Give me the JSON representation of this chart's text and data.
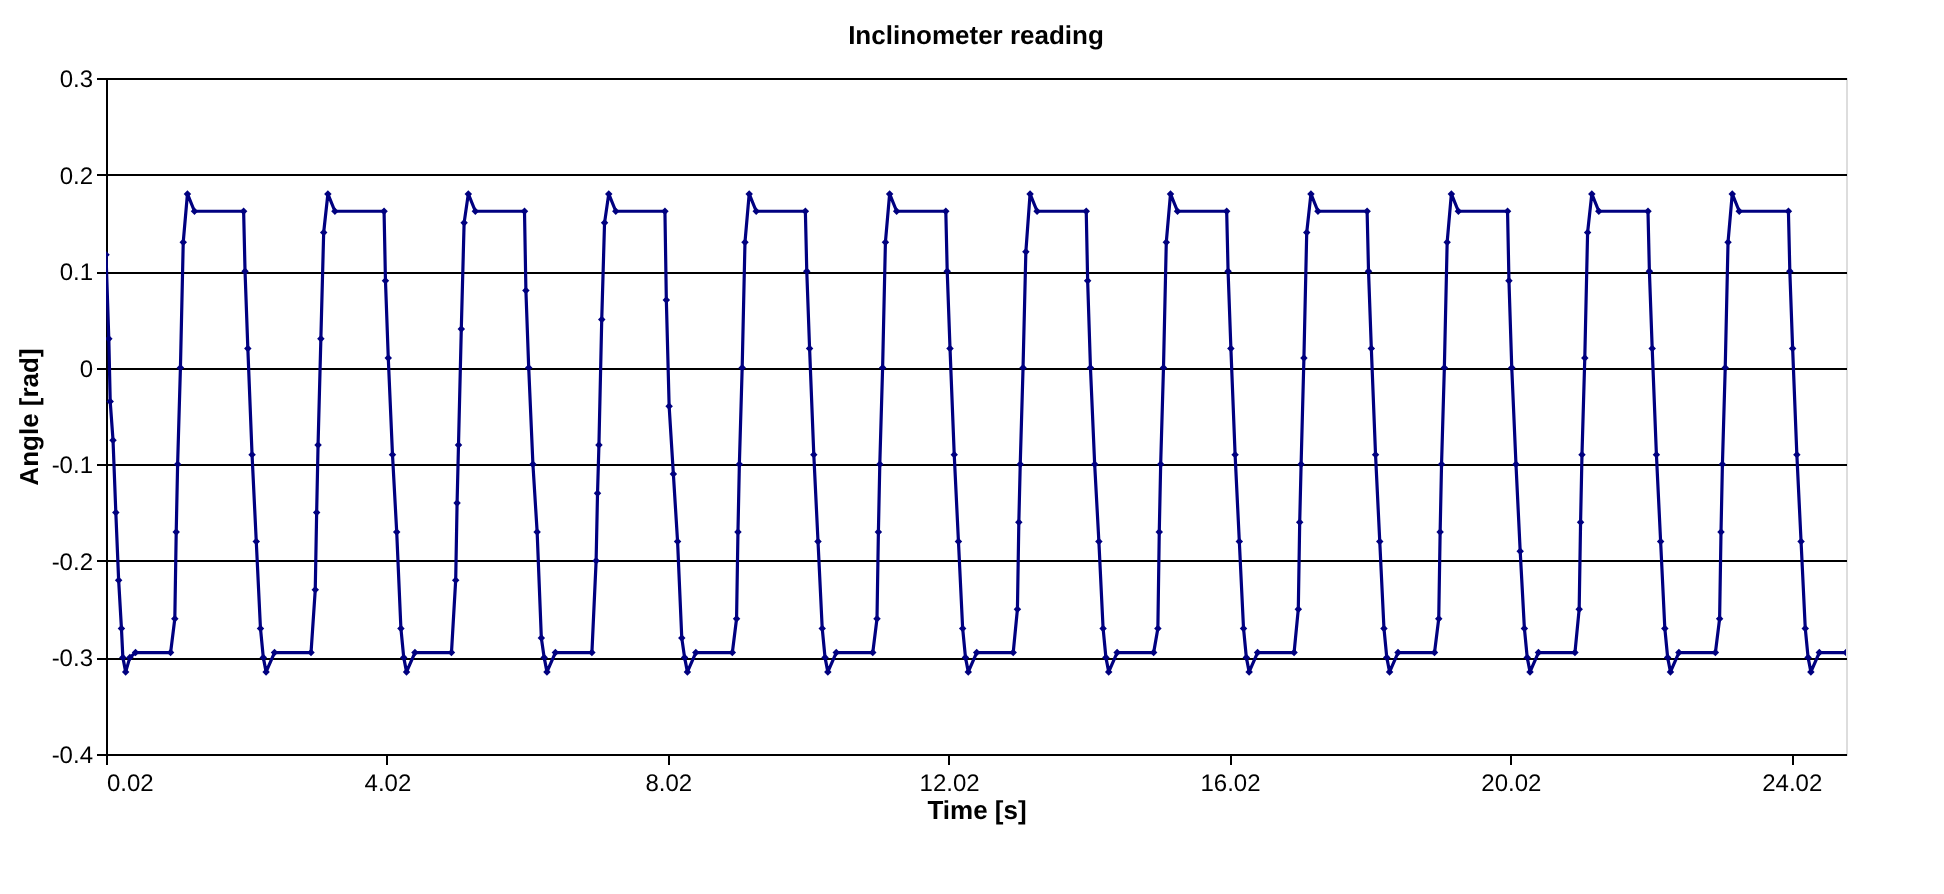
{
  "chart_data": {
    "type": "line",
    "title": "Inclinometer reading",
    "xlabel": "Time [s]",
    "ylabel": "Angle [rad]",
    "xlim": [
      0.02,
      24.8
    ],
    "xticks": [
      0.02,
      4.02,
      8.02,
      12.02,
      16.02,
      20.02,
      24.02
    ],
    "ylim": [
      -0.4,
      0.3
    ],
    "yticks": [
      -0.4,
      -0.3,
      -0.2,
      -0.1,
      0,
      0.1,
      0.2,
      0.3
    ],
    "grid": "y",
    "legend": false,
    "marker": "diamond",
    "line_style": "solid",
    "series": [
      {
        "color": "#000080",
        "x": [
          0.02,
          0.06,
          0.08,
          0.12,
          0.16,
          0.2,
          0.24,
          0.26,
          0.3,
          0.36,
          0.44,
          0.94,
          1.0,
          1.02,
          1.04,
          1.08,
          1.12,
          1.18,
          1.28,
          1.98,
          2.0,
          2.04,
          2.1,
          2.16,
          2.22,
          2.26,
          2.3,
          2.42,
          2.94,
          3.0,
          3.02,
          3.04,
          3.08,
          3.12,
          3.18,
          3.28,
          3.98,
          4.0,
          4.04,
          4.1,
          4.16,
          4.22,
          4.26,
          4.3,
          4.42,
          4.94,
          5.0,
          5.02,
          5.04,
          5.08,
          5.12,
          5.18,
          5.28,
          5.98,
          6.0,
          6.04,
          6.1,
          6.16,
          6.22,
          6.26,
          6.3,
          6.42,
          6.94,
          7.0,
          7.02,
          7.04,
          7.08,
          7.12,
          7.18,
          7.28,
          7.98,
          8.0,
          8.04,
          8.1,
          8.16,
          8.22,
          8.26,
          8.3,
          8.42,
          8.94,
          9.0,
          9.02,
          9.04,
          9.08,
          9.12,
          9.18,
          9.28,
          9.98,
          10.0,
          10.04,
          10.1,
          10.16,
          10.22,
          10.26,
          10.3,
          10.42,
          10.94,
          11.0,
          11.02,
          11.04,
          11.08,
          11.12,
          11.18,
          11.28,
          11.98,
          12.0,
          12.04,
          12.1,
          12.16,
          12.22,
          12.26,
          12.3,
          12.42,
          12.94,
          13.0,
          13.02,
          13.04,
          13.08,
          13.12,
          13.18,
          13.28,
          13.98,
          14.0,
          14.04,
          14.1,
          14.16,
          14.22,
          14.26,
          14.3,
          14.42,
          14.94,
          15.0,
          15.02,
          15.04,
          15.08,
          15.12,
          15.18,
          15.28,
          15.98,
          16.0,
          16.04,
          16.1,
          16.16,
          16.22,
          16.26,
          16.3,
          16.42,
          16.94,
          17.0,
          17.02,
          17.04,
          17.08,
          17.12,
          17.18,
          17.28,
          17.98,
          18.0,
          18.04,
          18.1,
          18.16,
          18.22,
          18.26,
          18.3,
          18.42,
          18.94,
          19.0,
          19.02,
          19.04,
          19.08,
          19.12,
          19.18,
          19.28,
          19.98,
          20.0,
          20.04,
          20.1,
          20.16,
          20.22,
          20.26,
          20.3,
          20.42,
          20.94,
          21.0,
          21.02,
          21.04,
          21.08,
          21.12,
          21.18,
          21.28,
          21.98,
          22.0,
          22.04,
          22.1,
          22.16,
          22.22,
          22.26,
          22.3,
          22.42,
          22.94,
          23.0,
          23.02,
          23.04,
          23.08,
          23.12,
          23.18,
          23.28,
          23.98,
          24.0,
          24.04,
          24.1,
          24.16,
          24.22,
          24.26,
          24.3,
          24.42,
          24.8
        ],
        "values": [
          0.117,
          0.03,
          -0.035,
          -0.075,
          -0.15,
          -0.22,
          -0.27,
          -0.3,
          -0.315,
          -0.3,
          -0.295,
          -0.295,
          -0.26,
          -0.17,
          -0.1,
          0,
          0.13,
          0.18,
          0.162,
          0.162,
          0.1,
          0.02,
          -0.09,
          -0.18,
          -0.27,
          -0.3,
          -0.315,
          -0.295,
          -0.295,
          -0.23,
          -0.15,
          -0.08,
          0.03,
          0.14,
          0.18,
          0.162,
          0.162,
          0.09,
          0.01,
          -0.09,
          -0.17,
          -0.27,
          -0.3,
          -0.315,
          -0.295,
          -0.295,
          -0.22,
          -0.14,
          -0.08,
          0.04,
          0.15,
          0.18,
          0.162,
          0.162,
          0.08,
          0.0,
          -0.1,
          -0.17,
          -0.28,
          -0.3,
          -0.315,
          -0.295,
          -0.295,
          -0.2,
          -0.13,
          -0.08,
          0.05,
          0.15,
          0.18,
          0.162,
          0.162,
          0.07,
          -0.04,
          -0.11,
          -0.18,
          -0.28,
          -0.3,
          -0.315,
          -0.295,
          -0.295,
          -0.26,
          -0.17,
          -0.1,
          0,
          0.13,
          0.18,
          0.162,
          0.162,
          0.1,
          0.02,
          -0.09,
          -0.18,
          -0.27,
          -0.3,
          -0.315,
          -0.295,
          -0.295,
          -0.26,
          -0.17,
          -0.1,
          0,
          0.13,
          0.18,
          0.162,
          0.162,
          0.1,
          0.02,
          -0.09,
          -0.18,
          -0.27,
          -0.3,
          -0.315,
          -0.295,
          -0.295,
          -0.25,
          -0.16,
          -0.1,
          0,
          0.12,
          0.18,
          0.162,
          0.162,
          0.09,
          0.0,
          -0.1,
          -0.18,
          -0.27,
          -0.3,
          -0.315,
          -0.295,
          -0.295,
          -0.27,
          -0.17,
          -0.1,
          0,
          0.13,
          0.18,
          0.162,
          0.162,
          0.1,
          0.02,
          -0.09,
          -0.18,
          -0.27,
          -0.3,
          -0.315,
          -0.295,
          -0.295,
          -0.25,
          -0.16,
          -0.1,
          0.01,
          0.14,
          0.18,
          0.162,
          0.162,
          0.1,
          0.02,
          -0.09,
          -0.18,
          -0.27,
          -0.3,
          -0.315,
          -0.295,
          -0.295,
          -0.26,
          -0.17,
          -0.1,
          0,
          0.13,
          0.18,
          0.162,
          0.162,
          0.09,
          0.0,
          -0.1,
          -0.19,
          -0.27,
          -0.3,
          -0.315,
          -0.295,
          -0.295,
          -0.25,
          -0.16,
          -0.09,
          0.01,
          0.14,
          0.18,
          0.162,
          0.162,
          0.1,
          0.02,
          -0.09,
          -0.18,
          -0.27,
          -0.3,
          -0.315,
          -0.295,
          -0.295,
          -0.26,
          -0.17,
          -0.1,
          0,
          0.13,
          0.18,
          0.162,
          0.162,
          0.1,
          0.02,
          -0.09,
          -0.18,
          -0.27,
          -0.3,
          -0.315,
          -0.295,
          -0.295
        ]
      }
    ]
  }
}
